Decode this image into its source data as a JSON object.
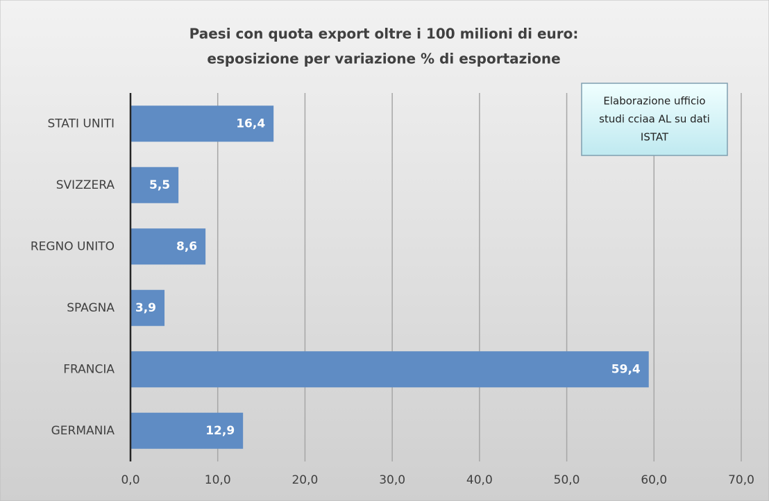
{
  "chart_data": {
    "type": "barh",
    "title": [
      "Paesi con quota export oltre i 100 milioni di euro:",
      "esposizione per variazione % di esportazione"
    ],
    "annotation": [
      "Elaborazione ufficio",
      "studi cciaa AL su dati",
      "ISTAT"
    ],
    "categories": [
      "STATI UNITI",
      "SVIZZERA",
      "REGNO UNITO",
      "SPAGNA",
      "FRANCIA",
      "GERMANIA"
    ],
    "values": [
      16.4,
      5.5,
      8.6,
      3.9,
      59.4,
      12.9
    ],
    "value_labels": [
      "16,4",
      "5,5",
      "8,6",
      "3,9",
      "59,4",
      "12,9"
    ],
    "color": "#5f8cc4",
    "xlim": [
      0,
      70
    ],
    "xticks": [
      {
        "value": 0,
        "label": "0,0"
      },
      {
        "value": 10,
        "label": "10,0"
      },
      {
        "value": 20,
        "label": "20,0"
      },
      {
        "value": 30,
        "label": "30,0"
      },
      {
        "value": 40,
        "label": "40,0"
      },
      {
        "value": 50,
        "label": "50,0"
      },
      {
        "value": 60,
        "label": "60,0"
      },
      {
        "value": 70,
        "label": "70,0"
      }
    ],
    "grid": true
  }
}
